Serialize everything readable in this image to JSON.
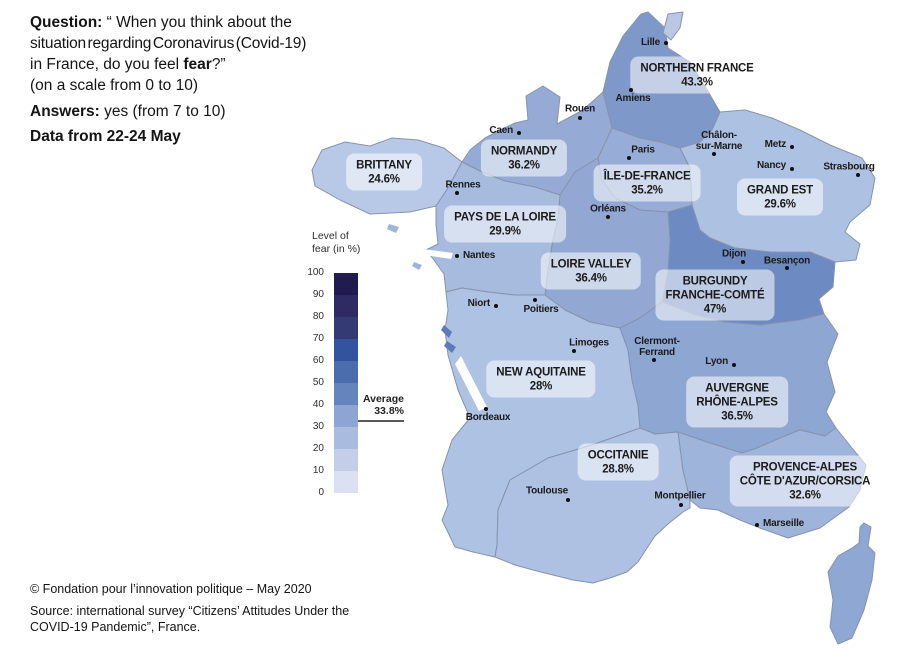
{
  "question": {
    "label": "Question:",
    "line1": "“ When you think about the",
    "line2": "situation regarding Coronavirus (Covid-19)",
    "line3_pre": "in France, do you feel ",
    "line3_bold": "fear",
    "line3_post": "?”",
    "line4": "(on a scale from 0 to 10)",
    "answers_label": "Answers:",
    "answers_text": " yes (from 7 to 10)",
    "data_from": "Data from 22-24 May"
  },
  "legend": {
    "title_line1": "Level of",
    "title_line2": "fear (in %)",
    "ticks": [
      100,
      90,
      80,
      70,
      60,
      50,
      40,
      30,
      20,
      10,
      0
    ],
    "colors": [
      "#201c50",
      "#2e2a64",
      "#343a74",
      "#33539e",
      "#4b6cad",
      "#6584be",
      "#8da5d2",
      "#a9bce0",
      "#c3cfe9",
      "#dbe1f2"
    ],
    "average_label": "Average",
    "average_value": "33.8%"
  },
  "regions": {
    "hdf": {
      "name": "NORTHERN FRANCE",
      "value": "43.3%",
      "color": "#7e98ca"
    },
    "brittany": {
      "name": "BRITTANY",
      "value": "24.6%",
      "color": "#b8c9e7"
    },
    "normandy": {
      "name": "NORMANDY",
      "value": "36.2%",
      "color": "#95abd6"
    },
    "idf": {
      "name": "ÎLE-DE-FRANCE",
      "value": "35.2%",
      "color": "#97add7"
    },
    "grand_est": {
      "name": "GRAND EST",
      "value": "29.6%",
      "color": "#adc1e3"
    },
    "pdl": {
      "name": "PAYS DE LA LOIRE",
      "value": "29.9%",
      "color": "#a7bbdf"
    },
    "loire_valley": {
      "name": "LOIRE VALLEY",
      "value": "36.4%",
      "color": "#92a8d3"
    },
    "bfc": {
      "name": "BURGUNDY",
      "name2": "FRANCHE-COMTÉ",
      "value": "47%",
      "color": "#6e8ac2"
    },
    "new_aquitaine": {
      "name": "NEW AQUITAINE",
      "value": "28%",
      "color": "#aec2e3"
    },
    "ara": {
      "name": "AUVERGNE",
      "name2": "RHÔNE-ALPES",
      "value": "36.5%",
      "color": "#8ea6d2"
    },
    "occitanie": {
      "name": "OCCITANIE",
      "value": "28.8%",
      "color": "#aec1e2"
    },
    "paca": {
      "name": "PROVENCE-ALPES",
      "name2": "CÔTE D'AZUR/CORSICA",
      "value": "32.6%",
      "color": "#9fb4db"
    }
  },
  "map": {
    "corsica_color": "#8fa7d3",
    "island_color": "#5f7ab8",
    "north_patch_color": "#bac8e5"
  },
  "cities": {
    "lille": {
      "name": "Lille"
    },
    "amiens": {
      "name": "Amiens"
    },
    "rouen": {
      "name": "Rouen"
    },
    "caen": {
      "name": "Caen"
    },
    "paris": {
      "name": "Paris"
    },
    "chalons": {
      "name": "Châlon-",
      "name2": "sur-Marne"
    },
    "metz": {
      "name": "Metz"
    },
    "nancy": {
      "name": "Nancy"
    },
    "strasbourg": {
      "name": "Strasbourg"
    },
    "rennes": {
      "name": "Rennes"
    },
    "orleans": {
      "name": "Orléans"
    },
    "nantes": {
      "name": "Nantes"
    },
    "niort": {
      "name": "Niort"
    },
    "poitiers": {
      "name": "Poitiers"
    },
    "limoges": {
      "name": "Limoges"
    },
    "clermont": {
      "name": "Clermont-",
      "name2": "Ferrand"
    },
    "lyon": {
      "name": "Lyon"
    },
    "bordeaux": {
      "name": "Bordeaux"
    },
    "toulouse": {
      "name": "Toulouse"
    },
    "montpellier": {
      "name": "Montpellier"
    },
    "marseille": {
      "name": "Marseille"
    },
    "dijon": {
      "name": "Dijon"
    },
    "besancon": {
      "name": "Besançon"
    }
  },
  "footer": {
    "copyright": "© Fondation pour l’innovation politique – May 2020",
    "source_line1": "Source: international survey “Citizens’ Attitudes Under the",
    "source_line2": "COVID-19 Pandemic”, France."
  },
  "chart_data": {
    "type": "choropleth",
    "title": "Level of fear (in %) by French region, Covid-19, 22-24 May",
    "scale": {
      "min": 0,
      "max": 100,
      "step": 10
    },
    "average": 33.8,
    "regions": [
      {
        "name": "Northern France",
        "value": 43.3
      },
      {
        "name": "Normandy",
        "value": 36.2
      },
      {
        "name": "Brittany",
        "value": 24.6
      },
      {
        "name": "Île-de-France",
        "value": 35.2
      },
      {
        "name": "Grand Est",
        "value": 29.6
      },
      {
        "name": "Pays de la Loire",
        "value": 29.9
      },
      {
        "name": "Loire Valley",
        "value": 36.4
      },
      {
        "name": "Burgundy Franche-Comté",
        "value": 47
      },
      {
        "name": "New Aquitaine",
        "value": 28
      },
      {
        "name": "Auvergne Rhône-Alpes",
        "value": 36.5
      },
      {
        "name": "Occitanie",
        "value": 28.8
      },
      {
        "name": "Provence-Alpes Côte d'Azur/Corsica",
        "value": 32.6
      }
    ]
  }
}
